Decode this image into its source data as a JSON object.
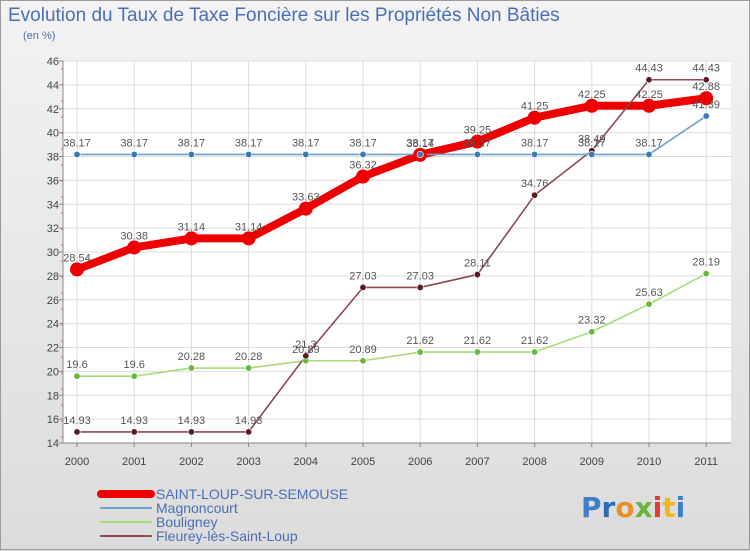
{
  "chart_data": {
    "type": "line",
    "title": "Evolution du Taux de Taxe Foncière sur les Propriétés Non Bâties",
    "ylabel": "(en %)",
    "xlabel": "",
    "ylim": [
      14,
      46
    ],
    "yticks": [
      "14",
      "16",
      "18",
      "20",
      "22",
      "24",
      "26",
      "28",
      "30",
      "32",
      "34",
      "36",
      "38",
      "40",
      "42",
      "44",
      "46"
    ],
    "categories": [
      "2000",
      "2001",
      "2002",
      "2003",
      "2004",
      "2005",
      "2006",
      "2007",
      "2008",
      "2009",
      "2010",
      "2011"
    ],
    "grid": true,
    "series": [
      {
        "name": "SAINT-LOUP-SUR-SEMOUSE",
        "color": "#ee0000",
        "values": [
          28.54,
          30.38,
          31.14,
          31.14,
          33.63,
          36.32,
          38.14,
          39.25,
          41.25,
          42.25,
          42.25,
          42.88
        ],
        "labels": [
          "28.54",
          "30.38",
          "31.14",
          "31.14",
          "33.63",
          "36.32",
          "38.14",
          "39.25",
          "41.25",
          "42.25",
          "42.25",
          "42.88"
        ]
      },
      {
        "name": "Magnoncourt",
        "color": "#6ca0cf",
        "values": [
          38.17,
          38.17,
          38.17,
          38.17,
          38.17,
          38.17,
          38.17,
          38.17,
          38.17,
          38.17,
          38.17,
          41.39
        ],
        "labels": [
          "38.17",
          "38.17",
          "38.17",
          "38.17",
          "38.17",
          "38.17",
          "38.17",
          "38.17",
          "38.17",
          "38.17",
          "38.17",
          "41.39"
        ]
      },
      {
        "name": "Bouligney",
        "color": "#a6dc7a",
        "values": [
          19.6,
          19.6,
          20.28,
          20.28,
          20.89,
          20.89,
          21.62,
          21.62,
          21.62,
          23.32,
          25.63,
          28.19
        ],
        "labels": [
          "19.6",
          "19.6",
          "20.28",
          "20.28",
          "20.89",
          "20.89",
          "21.62",
          "21.62",
          "21.62",
          "23.32",
          "25.63",
          "28.19"
        ]
      },
      {
        "name": "Fleurey-lès-Saint-Loup",
        "color": "#8a4a4e",
        "values": [
          14.93,
          14.93,
          14.93,
          14.93,
          21.3,
          27.03,
          27.03,
          28.11,
          34.76,
          38.49,
          44.43,
          44.43
        ],
        "labels": [
          "14.93",
          "14.93",
          "14.93",
          "14.93",
          "21.3",
          "27.03",
          "27.03",
          "28.11",
          "34.76",
          "38.49",
          "44.43",
          "44.43"
        ]
      }
    ]
  },
  "logo": {
    "text": "Proxiti"
  }
}
